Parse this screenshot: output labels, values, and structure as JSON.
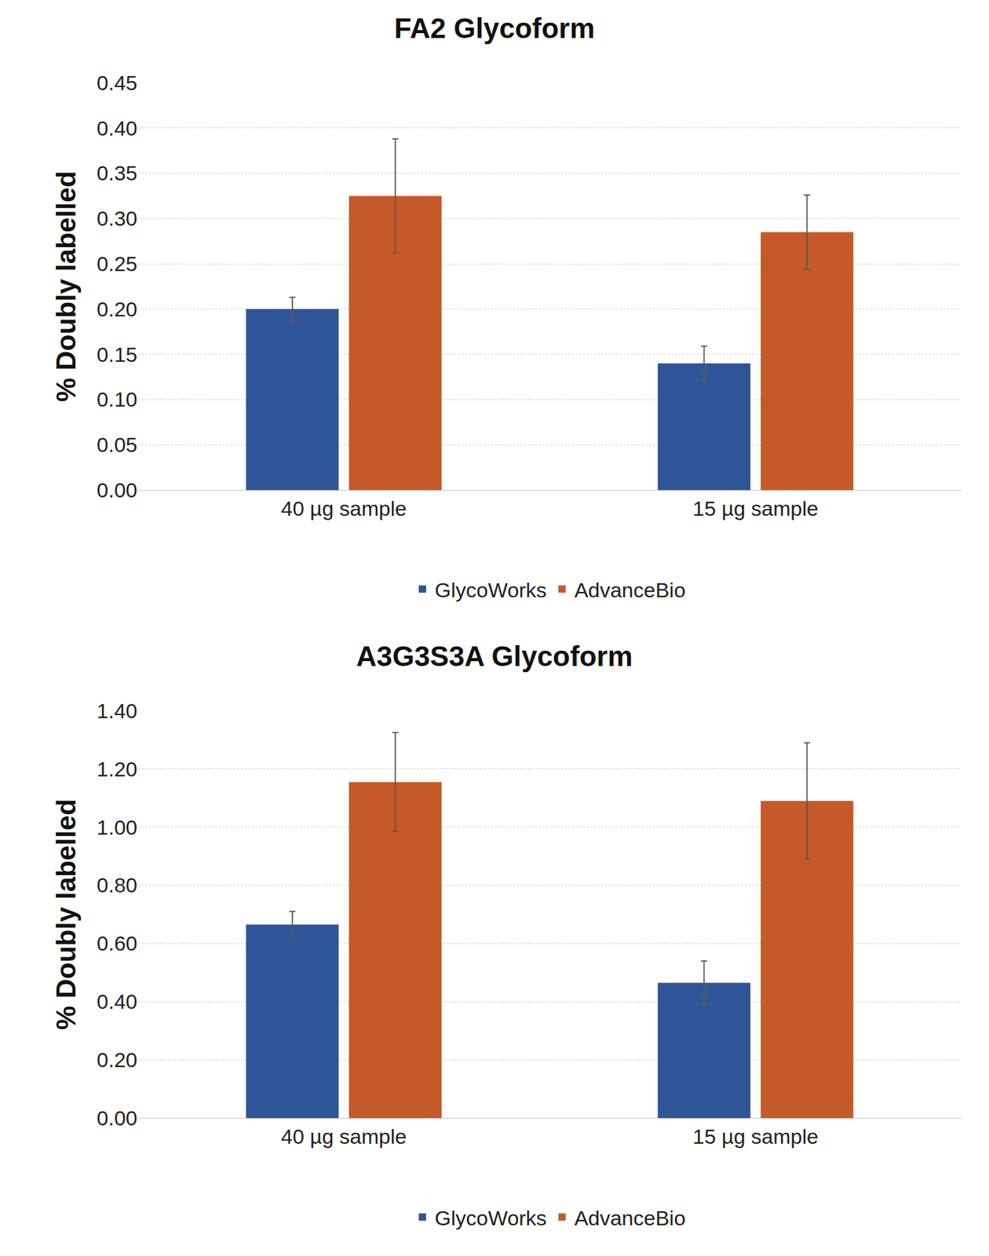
{
  "chart_data": [
    {
      "type": "bar",
      "title": "FA2 Glycoform",
      "ylabel": "% Doubly labelled",
      "categories": [
        "40 µg sample",
        "15 µg sample"
      ],
      "series": [
        {
          "name": "GlycoWorks",
          "color": "#2e5597",
          "values": [
            0.2,
            0.14
          ],
          "errors": [
            0.013,
            0.019
          ]
        },
        {
          "name": "AdvanceBio",
          "color": "#c55a28",
          "values": [
            0.325,
            0.285
          ],
          "errors": [
            0.063,
            0.041
          ]
        }
      ],
      "ylim": [
        0,
        0.45
      ],
      "yticks": [
        {
          "value": 0,
          "label": "0.00"
        },
        {
          "value": 0.05,
          "label": "0.05"
        },
        {
          "value": 0.1,
          "label": "0.10"
        },
        {
          "value": 0.15,
          "label": "0.15"
        },
        {
          "value": 0.2,
          "label": "0.20"
        },
        {
          "value": 0.25,
          "label": "0.25"
        },
        {
          "value": 0.3,
          "label": "0.30"
        },
        {
          "value": 0.35,
          "label": "0.35"
        },
        {
          "value": 0.4,
          "label": "0.40"
        },
        {
          "value": 0.45,
          "label": "0.45"
        }
      ],
      "grid": true,
      "legend": "bottom"
    },
    {
      "type": "bar",
      "title": "A3G3S3A Glycoform",
      "ylabel": "% Doubly labelled",
      "categories": [
        "40 µg sample",
        "15 µg sample"
      ],
      "series": [
        {
          "name": "GlycoWorks",
          "color": "#2e5597",
          "values": [
            0.665,
            0.465
          ],
          "errors": [
            0.045,
            0.075
          ]
        },
        {
          "name": "AdvanceBio",
          "color": "#c55a28",
          "values": [
            1.155,
            1.09
          ],
          "errors": [
            0.17,
            0.2
          ]
        }
      ],
      "ylim": [
        0,
        1.4
      ],
      "yticks": [
        {
          "value": 0,
          "label": "0.00"
        },
        {
          "value": 0.2,
          "label": "0.20"
        },
        {
          "value": 0.4,
          "label": "0.40"
        },
        {
          "value": 0.6,
          "label": "0.60"
        },
        {
          "value": 0.8,
          "label": "0.80"
        },
        {
          "value": 1.0,
          "label": "1.00"
        },
        {
          "value": 1.2,
          "label": "1.20"
        },
        {
          "value": 1.4,
          "label": "1.40"
        }
      ],
      "grid": true,
      "legend": "bottom"
    }
  ]
}
